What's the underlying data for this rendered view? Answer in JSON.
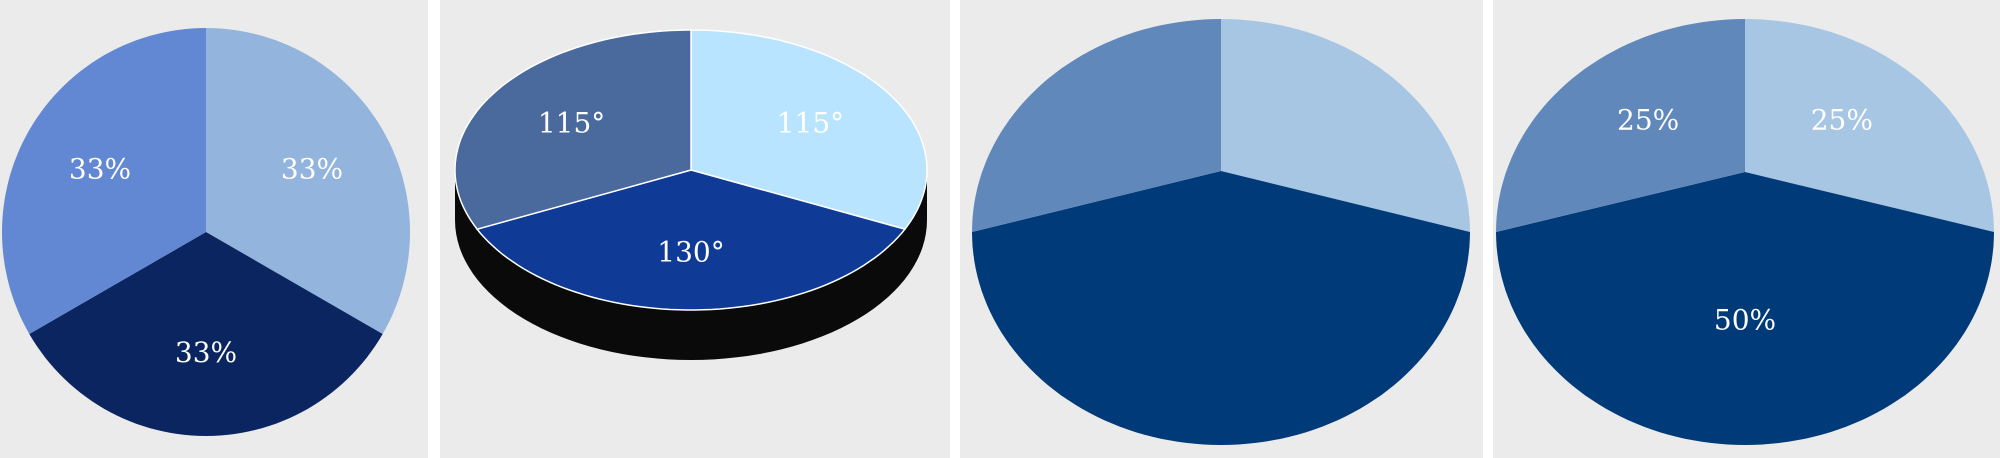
{
  "chart_data": [
    {
      "type": "pie",
      "values": [
        33,
        33,
        33
      ],
      "value_labels": [
        "33%",
        "33%",
        "33%"
      ],
      "colors": [
        "#93b4dc",
        "#0a2560",
        "#6288d4"
      ]
    },
    {
      "type": "pie3d",
      "values": [
        115,
        130,
        115
      ],
      "value_labels": [
        "115°",
        "130°",
        "115°"
      ],
      "colors": [
        "#b8e4ff",
        "#0f3a96",
        "#4a6a9e"
      ]
    },
    {
      "type": "pie",
      "values": [
        25,
        50,
        25
      ],
      "colors": [
        "#a7c6e3",
        "#003a78",
        "#6088bb"
      ]
    },
    {
      "type": "pie",
      "values": [
        25,
        50,
        25
      ],
      "value_labels": [
        "25%",
        "50%",
        "25%"
      ],
      "colors": [
        "#a7c6e3",
        "#003a78",
        "#6088bb"
      ]
    }
  ]
}
